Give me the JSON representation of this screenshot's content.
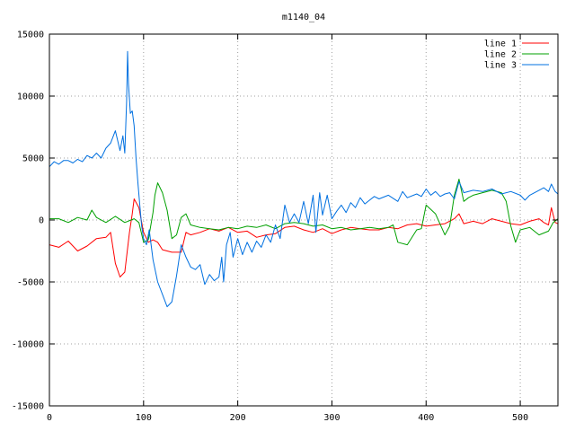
{
  "chart_data": {
    "type": "line",
    "title": "m1140_04",
    "xlabel": "",
    "ylabel": "",
    "xlim": [
      0,
      540
    ],
    "ylim": [
      -15000,
      15000
    ],
    "x_ticks": [
      0,
      100,
      200,
      300,
      400,
      500
    ],
    "y_ticks": [
      -15000,
      -10000,
      -5000,
      0,
      5000,
      10000,
      15000
    ],
    "grid": true,
    "legend_position": "top-right",
    "series": [
      {
        "name": "line 1",
        "color": "#ff0000",
        "points": [
          [
            0,
            -2000
          ],
          [
            10,
            -2200
          ],
          [
            20,
            -1700
          ],
          [
            30,
            -2500
          ],
          [
            40,
            -2100
          ],
          [
            50,
            -1500
          ],
          [
            60,
            -1400
          ],
          [
            65,
            -1000
          ],
          [
            70,
            -3500
          ],
          [
            75,
            -4600
          ],
          [
            80,
            -4200
          ],
          [
            85,
            -1000
          ],
          [
            88,
            500
          ],
          [
            90,
            1700
          ],
          [
            95,
            1000
          ],
          [
            100,
            -1000
          ],
          [
            105,
            -1800
          ],
          [
            110,
            -1600
          ],
          [
            115,
            -1800
          ],
          [
            120,
            -2400
          ],
          [
            130,
            -2600
          ],
          [
            140,
            -2600
          ],
          [
            145,
            -1000
          ],
          [
            150,
            -1200
          ],
          [
            160,
            -1000
          ],
          [
            170,
            -700
          ],
          [
            180,
            -900
          ],
          [
            190,
            -600
          ],
          [
            200,
            -1000
          ],
          [
            210,
            -900
          ],
          [
            220,
            -1400
          ],
          [
            230,
            -1200
          ],
          [
            240,
            -1100
          ],
          [
            250,
            -600
          ],
          [
            260,
            -500
          ],
          [
            270,
            -800
          ],
          [
            280,
            -1000
          ],
          [
            290,
            -700
          ],
          [
            300,
            -1100
          ],
          [
            310,
            -800
          ],
          [
            320,
            -600
          ],
          [
            330,
            -700
          ],
          [
            340,
            -800
          ],
          [
            350,
            -800
          ],
          [
            360,
            -600
          ],
          [
            370,
            -700
          ],
          [
            380,
            -400
          ],
          [
            390,
            -300
          ],
          [
            400,
            -500
          ],
          [
            410,
            -400
          ],
          [
            420,
            -300
          ],
          [
            430,
            100
          ],
          [
            435,
            500
          ],
          [
            440,
            -300
          ],
          [
            450,
            -100
          ],
          [
            460,
            -300
          ],
          [
            470,
            100
          ],
          [
            480,
            -100
          ],
          [
            490,
            -300
          ],
          [
            500,
            -400
          ],
          [
            510,
            -100
          ],
          [
            520,
            100
          ],
          [
            525,
            -200
          ],
          [
            530,
            -400
          ],
          [
            533,
            1000
          ],
          [
            537,
            -200
          ],
          [
            540,
            -300
          ]
        ]
      },
      {
        "name": "line 2",
        "color": "#00a000",
        "points": [
          [
            0,
            100
          ],
          [
            10,
            100
          ],
          [
            20,
            -200
          ],
          [
            30,
            200
          ],
          [
            40,
            0
          ],
          [
            45,
            800
          ],
          [
            50,
            200
          ],
          [
            60,
            -200
          ],
          [
            70,
            300
          ],
          [
            80,
            -200
          ],
          [
            90,
            100
          ],
          [
            95,
            -200
          ],
          [
            100,
            -1800
          ],
          [
            105,
            -1600
          ],
          [
            110,
            600
          ],
          [
            112,
            2000
          ],
          [
            115,
            3000
          ],
          [
            120,
            2200
          ],
          [
            125,
            800
          ],
          [
            130,
            -1500
          ],
          [
            135,
            -1200
          ],
          [
            140,
            200
          ],
          [
            145,
            500
          ],
          [
            150,
            -400
          ],
          [
            160,
            -600
          ],
          [
            170,
            -700
          ],
          [
            180,
            -800
          ],
          [
            190,
            -600
          ],
          [
            200,
            -700
          ],
          [
            210,
            -500
          ],
          [
            220,
            -600
          ],
          [
            230,
            -400
          ],
          [
            240,
            -700
          ],
          [
            250,
            -300
          ],
          [
            260,
            -200
          ],
          [
            270,
            -300
          ],
          [
            280,
            -500
          ],
          [
            290,
            -400
          ],
          [
            300,
            -700
          ],
          [
            310,
            -600
          ],
          [
            320,
            -800
          ],
          [
            330,
            -700
          ],
          [
            340,
            -600
          ],
          [
            350,
            -700
          ],
          [
            360,
            -600
          ],
          [
            365,
            -400
          ],
          [
            370,
            -1800
          ],
          [
            380,
            -2000
          ],
          [
            390,
            -800
          ],
          [
            395,
            -700
          ],
          [
            400,
            1200
          ],
          [
            410,
            500
          ],
          [
            420,
            -1200
          ],
          [
            425,
            -500
          ],
          [
            430,
            2000
          ],
          [
            435,
            3300
          ],
          [
            440,
            1500
          ],
          [
            445,
            1800
          ],
          [
            450,
            2000
          ],
          [
            460,
            2200
          ],
          [
            470,
            2400
          ],
          [
            480,
            2200
          ],
          [
            485,
            1500
          ],
          [
            490,
            -500
          ],
          [
            495,
            -1800
          ],
          [
            500,
            -800
          ],
          [
            510,
            -600
          ],
          [
            520,
            -1200
          ],
          [
            530,
            -900
          ],
          [
            535,
            -200
          ],
          [
            540,
            100
          ]
        ]
      },
      {
        "name": "line 3",
        "color": "#0070e0",
        "points": [
          [
            0,
            4300
          ],
          [
            5,
            4700
          ],
          [
            10,
            4500
          ],
          [
            15,
            4800
          ],
          [
            20,
            4800
          ],
          [
            25,
            4600
          ],
          [
            30,
            4900
          ],
          [
            35,
            4700
          ],
          [
            40,
            5200
          ],
          [
            45,
            5000
          ],
          [
            50,
            5400
          ],
          [
            55,
            5000
          ],
          [
            60,
            5800
          ],
          [
            65,
            6200
          ],
          [
            70,
            7200
          ],
          [
            75,
            5600
          ],
          [
            78,
            6800
          ],
          [
            80,
            5400
          ],
          [
            82,
            9500
          ],
          [
            83,
            13600
          ],
          [
            84,
            11000
          ],
          [
            86,
            8600
          ],
          [
            88,
            8800
          ],
          [
            90,
            7600
          ],
          [
            92,
            5000
          ],
          [
            94,
            3000
          ],
          [
            96,
            1200
          ],
          [
            98,
            -500
          ],
          [
            100,
            -1500
          ],
          [
            103,
            -2000
          ],
          [
            106,
            -800
          ],
          [
            110,
            -3200
          ],
          [
            115,
            -5000
          ],
          [
            120,
            -6000
          ],
          [
            125,
            -7000
          ],
          [
            130,
            -6600
          ],
          [
            135,
            -4500
          ],
          [
            138,
            -3000
          ],
          [
            140,
            -2000
          ],
          [
            145,
            -3000
          ],
          [
            150,
            -3800
          ],
          [
            155,
            -4000
          ],
          [
            160,
            -3600
          ],
          [
            165,
            -5200
          ],
          [
            170,
            -4400
          ],
          [
            175,
            -4900
          ],
          [
            180,
            -4600
          ],
          [
            183,
            -3000
          ],
          [
            185,
            -5000
          ],
          [
            188,
            -2000
          ],
          [
            192,
            -1000
          ],
          [
            195,
            -3000
          ],
          [
            200,
            -1500
          ],
          [
            205,
            -2800
          ],
          [
            210,
            -1800
          ],
          [
            215,
            -2600
          ],
          [
            220,
            -1700
          ],
          [
            225,
            -2200
          ],
          [
            230,
            -1200
          ],
          [
            235,
            -1800
          ],
          [
            240,
            -400
          ],
          [
            245,
            -1500
          ],
          [
            250,
            1200
          ],
          [
            255,
            -200
          ],
          [
            260,
            500
          ],
          [
            265,
            -200
          ],
          [
            270,
            1500
          ],
          [
            275,
            -300
          ],
          [
            280,
            2000
          ],
          [
            283,
            -1000
          ],
          [
            287,
            2200
          ],
          [
            290,
            400
          ],
          [
            295,
            2000
          ],
          [
            300,
            100
          ],
          [
            305,
            700
          ],
          [
            310,
            1200
          ],
          [
            315,
            600
          ],
          [
            320,
            1400
          ],
          [
            325,
            1000
          ],
          [
            330,
            1800
          ],
          [
            335,
            1300
          ],
          [
            340,
            1600
          ],
          [
            345,
            1900
          ],
          [
            350,
            1700
          ],
          [
            360,
            2000
          ],
          [
            370,
            1500
          ],
          [
            375,
            2300
          ],
          [
            380,
            1800
          ],
          [
            390,
            2100
          ],
          [
            395,
            1900
          ],
          [
            400,
            2500
          ],
          [
            405,
            2000
          ],
          [
            410,
            2300
          ],
          [
            415,
            1900
          ],
          [
            420,
            2100
          ],
          [
            425,
            2200
          ],
          [
            430,
            1700
          ],
          [
            435,
            3100
          ],
          [
            440,
            2200
          ],
          [
            450,
            2400
          ],
          [
            460,
            2300
          ],
          [
            470,
            2500
          ],
          [
            480,
            2100
          ],
          [
            490,
            2300
          ],
          [
            500,
            2000
          ],
          [
            505,
            1600
          ],
          [
            510,
            2000
          ],
          [
            520,
            2400
          ],
          [
            525,
            2600
          ],
          [
            530,
            2300
          ],
          [
            533,
            2900
          ],
          [
            537,
            2300
          ],
          [
            540,
            2100
          ]
        ]
      }
    ]
  }
}
